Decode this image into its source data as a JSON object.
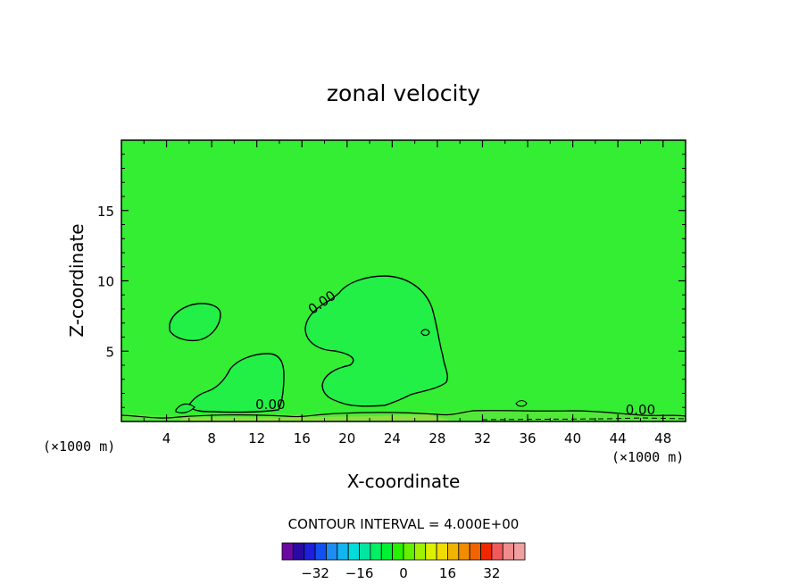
{
  "chart_data": {
    "type": "heatmap",
    "title": "zonal velocity",
    "xlabel": "X-coordinate",
    "ylabel": "Z-coordinate",
    "x_unit": "(×1000 m)",
    "y_unit": "(×1000 m)",
    "xlim": [
      0,
      50
    ],
    "ylim": [
      0,
      20
    ],
    "x_ticks": [
      4,
      8,
      12,
      16,
      20,
      24,
      28,
      32,
      36,
      40,
      44,
      48
    ],
    "y_ticks": [
      5,
      10,
      15
    ],
    "background_value": 0,
    "contour_interval_label": "CONTOUR INTERVAL = 4.000E+00",
    "contour_labels": [
      {
        "text": "0.00",
        "x": 18.0,
        "z": 8.2
      },
      {
        "text": "0.00",
        "x": 13.2,
        "z": 0.9
      },
      {
        "text": "0.00",
        "x": 46.0,
        "z": 0.5
      }
    ],
    "regions": [
      {
        "name": "negative-core-large",
        "value": -2,
        "center_x": 24,
        "center_z": 5.5
      },
      {
        "name": "negative-core-left-top",
        "value": -2,
        "center_x": 6.5,
        "center_z": 7.2
      },
      {
        "name": "negative-core-left-low",
        "value": -2,
        "center_x": 11,
        "center_z": 2.5
      }
    ],
    "colorbar": {
      "colors": [
        "#6a0aa0",
        "#2a0aa0",
        "#1e1edc",
        "#1450f0",
        "#1e8cf0",
        "#14b4f0",
        "#00dcdc",
        "#00e6a0",
        "#00f064",
        "#00f032",
        "#28f000",
        "#64f000",
        "#a0f000",
        "#dcf000",
        "#f0dc00",
        "#f0b400",
        "#f08c00",
        "#f06400",
        "#f02800",
        "#f05a5a",
        "#f08c8c",
        "#f0a0a0"
      ],
      "tick_labels": [
        "−32",
        "−16",
        "0",
        "16",
        "32"
      ],
      "tick_values": [
        -32,
        -16,
        0,
        16,
        32
      ]
    }
  }
}
